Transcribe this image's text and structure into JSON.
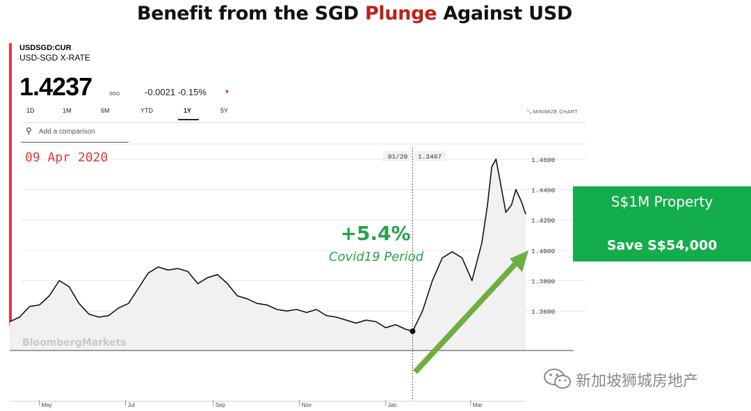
{
  "slide": {
    "title_prefix": "Benefit from the SGD ",
    "title_highlight": "Plunge",
    "title_suffix": " Against USD"
  },
  "quote": {
    "ticker": "USDSGD:CUR",
    "name": "USD-SGD X-RATE",
    "price": "1.4237",
    "currency": "SGD",
    "change": "-0.0021 -0.15%",
    "direction": "down"
  },
  "range_tabs": [
    "1D",
    "1M",
    "6M",
    "YTD",
    "1Y",
    "5Y"
  ],
  "active_range": "1Y",
  "minimize_label": "MINIMIZE CHART",
  "compare_placeholder": "Add a comparison",
  "colors": {
    "accent_red": "#e53935",
    "title_highlight": "#c0201a",
    "annotation_green": "#27a24a",
    "callout_green": "#13ad4b",
    "arrow_green": "#6fae42"
  },
  "chart_data": {
    "type": "area",
    "date_label": "09 Apr 2020",
    "crosshair": {
      "date_label": "01/20",
      "value_label": "1.3467",
      "date": "2020-01-20",
      "value": 1.3467
    },
    "x_ticks": [
      "May",
      "Jul",
      "Sep",
      "Nov",
      "Jan",
      "Mar"
    ],
    "y_ticks": [
      "1.3600",
      "1.3800",
      "1.4000",
      "1.4200",
      "1.4400",
      "1.4600"
    ],
    "ylim": [
      1.334,
      1.47
    ],
    "x": [
      "2019-04-10",
      "2019-04-17",
      "2019-04-24",
      "2019-05-01",
      "2019-05-08",
      "2019-05-15",
      "2019-05-22",
      "2019-05-29",
      "2019-06-05",
      "2019-06-12",
      "2019-06-19",
      "2019-06-26",
      "2019-07-03",
      "2019-07-10",
      "2019-07-17",
      "2019-07-24",
      "2019-07-31",
      "2019-08-07",
      "2019-08-14",
      "2019-08-21",
      "2019-08-28",
      "2019-09-04",
      "2019-09-11",
      "2019-09-18",
      "2019-09-25",
      "2019-10-02",
      "2019-10-09",
      "2019-10-16",
      "2019-10-23",
      "2019-10-30",
      "2019-11-06",
      "2019-11-13",
      "2019-11-20",
      "2019-11-27",
      "2019-12-04",
      "2019-12-11",
      "2019-12-18",
      "2019-12-25",
      "2020-01-01",
      "2020-01-08",
      "2020-01-15",
      "2020-01-20",
      "2020-01-27",
      "2020-02-03",
      "2020-02-10",
      "2020-02-17",
      "2020-02-24",
      "2020-03-02",
      "2020-03-09",
      "2020-03-13",
      "2020-03-16",
      "2020-03-19",
      "2020-03-23",
      "2020-03-26",
      "2020-03-30",
      "2020-04-02",
      "2020-04-06",
      "2020-04-09"
    ],
    "series": [
      {
        "values": [
          1.353,
          1.356,
          1.363,
          1.364,
          1.37,
          1.38,
          1.376,
          1.365,
          1.358,
          1.356,
          1.357,
          1.362,
          1.365,
          1.375,
          1.385,
          1.389,
          1.387,
          1.388,
          1.386,
          1.378,
          1.382,
          1.384,
          1.378,
          1.37,
          1.368,
          1.365,
          1.364,
          1.361,
          1.36,
          1.361,
          1.359,
          1.361,
          1.357,
          1.356,
          1.354,
          1.352,
          1.354,
          1.353,
          1.349,
          1.351,
          1.348,
          1.3467,
          1.36,
          1.38,
          1.395,
          1.399,
          1.395,
          1.38,
          1.405,
          1.43,
          1.455,
          1.46,
          1.44,
          1.425,
          1.43,
          1.44,
          1.432,
          1.4237
        ]
      }
    ],
    "annotations": {
      "change_label": "+5.4%",
      "period_label": "Covid19 Period",
      "source_watermark": "BloombergMarkets"
    },
    "callout": {
      "line1": "S$1M Property",
      "line2": "Save S$54,000"
    }
  },
  "watermark": {
    "icon": "wechat-icon",
    "text": "新加坡狮城房地产"
  }
}
